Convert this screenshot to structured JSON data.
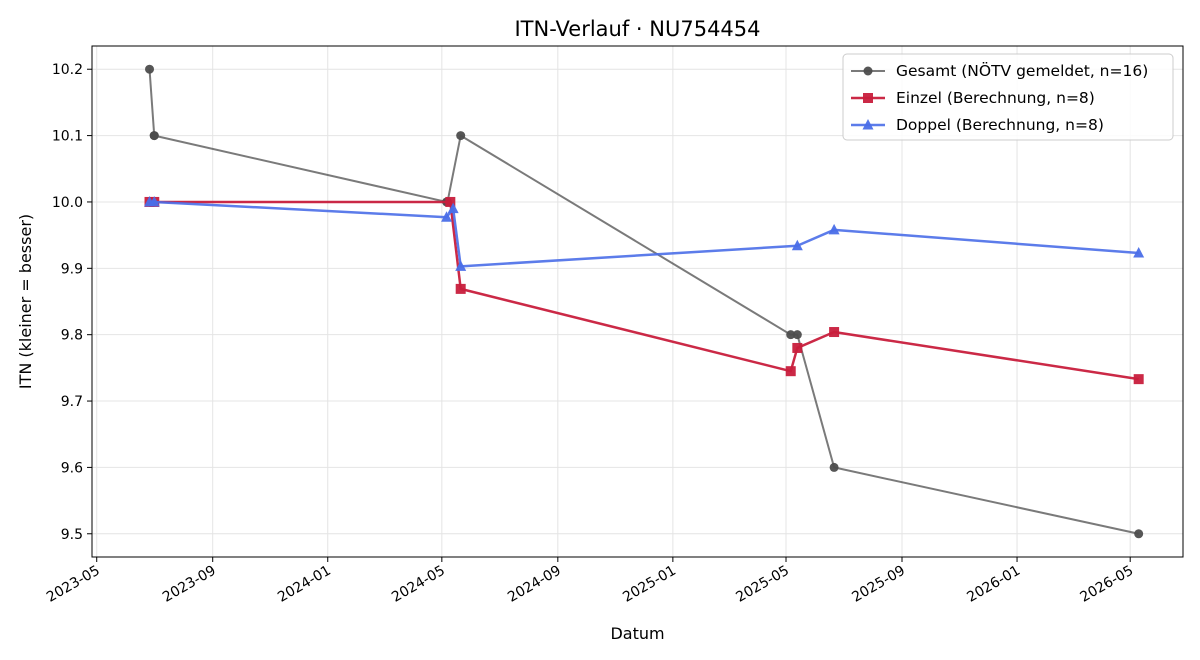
{
  "chart_data": {
    "type": "line",
    "title": "ITN-Verlauf · NU754454",
    "xlabel": "Datum",
    "ylabel": "ITN  (kleiner = besser)",
    "ylim": [
      9.465,
      10.235
    ],
    "xlim": [
      "2023-04-26",
      "2026-06-26"
    ],
    "x_ticks": [
      "2023-05",
      "2023-09",
      "2024-01",
      "2024-05",
      "2024-09",
      "2025-01",
      "2025-05",
      "2025-09",
      "2026-01",
      "2026-05"
    ],
    "y_ticks": [
      "9.5",
      "9.6",
      "9.7",
      "9.8",
      "9.9",
      "10.0",
      "10.1",
      "10.2"
    ],
    "grid": true,
    "legend_position": "top-right",
    "series": [
      {
        "name": "Gesamt (NÖTV gemeldet, n=16)",
        "color": "#4d4d4d",
        "marker": "circle",
        "x": [
          "2023-06-26",
          "2023-07-01",
          "2023-07-01",
          "2024-05-06",
          "2024-05-07",
          "2024-05-21",
          "2025-05-06",
          "2025-05-13",
          "2025-06-21",
          "2026-05-10"
        ],
        "y": [
          10.2,
          10.1,
          10.1,
          10.0,
          10.0,
          10.1,
          9.8,
          9.8,
          9.6,
          9.5
        ]
      },
      {
        "name": "Einzel (Berechnung, n=8)",
        "color": "#c81e3c",
        "marker": "square",
        "x": [
          "2023-06-26",
          "2023-07-01",
          "2024-05-10",
          "2024-05-21",
          "2025-05-06",
          "2025-05-13",
          "2025-06-21",
          "2026-05-10"
        ],
        "y": [
          10.0,
          10.0,
          10.0,
          9.869,
          9.745,
          9.78,
          9.804,
          9.733
        ]
      },
      {
        "name": "Doppel (Berechnung, n=8)",
        "color": "#4a6ee8",
        "marker": "triangle",
        "x": [
          "2023-06-26",
          "2023-07-01",
          "2024-05-06",
          "2024-05-13",
          "2024-05-21",
          "2025-05-13",
          "2025-06-21",
          "2026-05-10"
        ],
        "y": [
          10.0,
          10.0,
          9.977,
          9.99,
          9.903,
          9.934,
          9.958,
          9.923
        ]
      }
    ]
  }
}
